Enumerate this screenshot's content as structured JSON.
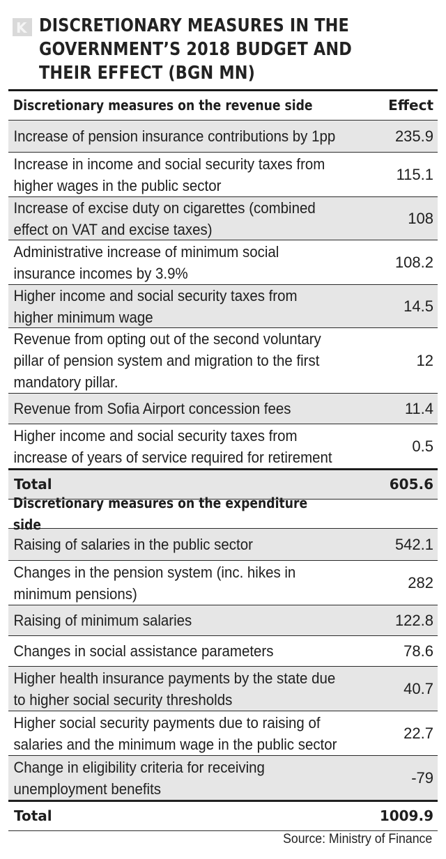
{
  "logo": {
    "letter": "K"
  },
  "title": "DISCRETIONARY MEASURES IN THE GOVERNMENT’S 2018 BUDGET AND THEIR EFFECT (BGN MN)",
  "revenue": {
    "header": "Discretionary measures on the revenue side",
    "effect_header": "Effect",
    "rows": [
      {
        "label": "Increase of pension insurance contributions by 1pp",
        "value": "235.9"
      },
      {
        "label": "Increase in income and social security taxes from higher wages in the public sector",
        "value": "115.1"
      },
      {
        "label": "Increase of excise duty on cigarettes (combined effect on VAT and excise taxes)",
        "value": "108"
      },
      {
        "label": "Administrative increase of minimum social insurance incomes by 3.9%",
        "value": "108.2"
      },
      {
        "label": "Higher income and social security taxes from higher minimum wage",
        "value": "14.5"
      },
      {
        "label": "Revenue from opting out of the second voluntary pillar of pension system and migration to the first mandatory pillar.",
        "value": "12"
      },
      {
        "label": "Revenue from Sofia Airport concession fees",
        "value": "11.4"
      },
      {
        "label": "Higher income and social security taxes from increase of years of service required for retirement",
        "value": "0.5"
      }
    ],
    "total_label": "Total",
    "total_value": "605.6"
  },
  "expenditure": {
    "header": "Discretionary measures on the expenditure side",
    "rows": [
      {
        "label": "Raising of salaries in the public sector",
        "value": "542.1"
      },
      {
        "label": "Changes in the pension system (inc. hikes in minimum pensions)",
        "value": "282"
      },
      {
        "label": "Raising of minimum salaries",
        "value": "122.8"
      },
      {
        "label": "Changes in social assistance parameters",
        "value": "78.6"
      },
      {
        "label": "Higher health insurance payments by the state due to higher social security thresholds",
        "value": "40.7"
      },
      {
        "label": "Higher social security payments due to raising of salaries and the minimum wage in the public sector",
        "value": "22.7"
      },
      {
        "label": "Change in eligibility criteria for receiving unemployment benefits",
        "value": "-79"
      }
    ],
    "total_label": "Total",
    "total_value": "1009.9"
  },
  "source": "Source: Ministry of Finance"
}
